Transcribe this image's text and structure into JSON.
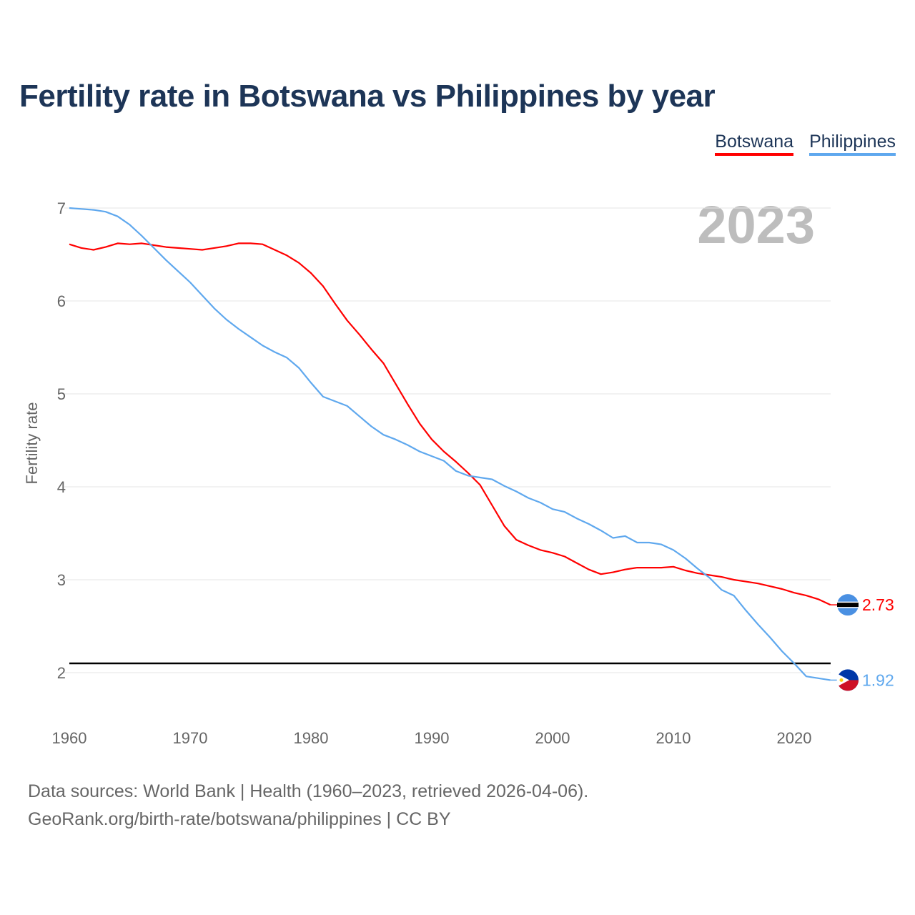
{
  "title": "Fertility rate in Botswana vs Philippines by year",
  "year_label": "2023",
  "legend": {
    "botswana": "Botswana",
    "philippines": "Philippines"
  },
  "footer": {
    "line1": "Data sources: World Bank | Health (1960–2023, retrieved 2026-04-06).",
    "line2": "GeoRank.org/birth-rate/botswana/philippines | CC BY"
  },
  "chart_data": {
    "type": "line",
    "title": "Fertility rate in Botswana vs Philippines by year",
    "xlabel": "",
    "ylabel": "Fertility rate",
    "xlim": [
      1960,
      2023
    ],
    "ylim": [
      1.5,
      7.2
    ],
    "x_ticks": [
      1960,
      1970,
      1980,
      1990,
      2000,
      2010,
      2020
    ],
    "y_ticks": [
      2,
      3,
      4,
      5,
      6,
      7
    ],
    "grid": true,
    "legend_position": "top-right",
    "reference_line": 2.1,
    "x": [
      1960,
      1961,
      1962,
      1963,
      1964,
      1965,
      1966,
      1967,
      1968,
      1969,
      1970,
      1971,
      1972,
      1973,
      1974,
      1975,
      1976,
      1977,
      1978,
      1979,
      1980,
      1981,
      1982,
      1983,
      1984,
      1985,
      1986,
      1987,
      1988,
      1989,
      1990,
      1991,
      1992,
      1993,
      1994,
      1995,
      1996,
      1997,
      1998,
      1999,
      2000,
      2001,
      2002,
      2003,
      2004,
      2005,
      2006,
      2007,
      2008,
      2009,
      2010,
      2011,
      2012,
      2013,
      2014,
      2015,
      2016,
      2017,
      2018,
      2019,
      2020,
      2021,
      2022,
      2023
    ],
    "series": [
      {
        "name": "Botswana",
        "color": "#ff0000",
        "end_label": "2.73",
        "values": [
          6.61,
          6.57,
          6.55,
          6.58,
          6.62,
          6.61,
          6.62,
          6.6,
          6.58,
          6.57,
          6.56,
          6.55,
          6.57,
          6.59,
          6.62,
          6.62,
          6.61,
          6.55,
          6.49,
          6.41,
          6.3,
          6.16,
          5.97,
          5.79,
          5.64,
          5.48,
          5.33,
          5.11,
          4.89,
          4.68,
          4.51,
          4.38,
          4.27,
          4.15,
          4.02,
          3.8,
          3.58,
          3.43,
          3.37,
          3.32,
          3.29,
          3.25,
          3.18,
          3.11,
          3.06,
          3.08,
          3.11,
          3.13,
          3.13,
          3.13,
          3.14,
          3.1,
          3.07,
          3.05,
          3.03,
          3.0,
          2.98,
          2.96,
          2.93,
          2.9,
          2.86,
          2.83,
          2.79,
          2.73
        ]
      },
      {
        "name": "Philippines",
        "color": "#5fa8ee",
        "end_label": "1.92",
        "values": [
          7.0,
          6.99,
          6.98,
          6.96,
          6.91,
          6.82,
          6.7,
          6.57,
          6.44,
          6.32,
          6.2,
          6.06,
          5.92,
          5.8,
          5.7,
          5.61,
          5.52,
          5.45,
          5.39,
          5.28,
          5.12,
          4.97,
          4.92,
          4.87,
          4.76,
          4.65,
          4.56,
          4.51,
          4.45,
          4.38,
          4.33,
          4.28,
          4.17,
          4.12,
          4.1,
          4.08,
          4.01,
          3.95,
          3.88,
          3.83,
          3.76,
          3.73,
          3.66,
          3.6,
          3.53,
          3.45,
          3.47,
          3.4,
          3.4,
          3.38,
          3.32,
          3.23,
          3.12,
          3.02,
          2.89,
          2.83,
          2.67,
          2.52,
          2.38,
          2.23,
          2.1,
          1.96,
          1.94,
          1.92
        ]
      }
    ]
  }
}
